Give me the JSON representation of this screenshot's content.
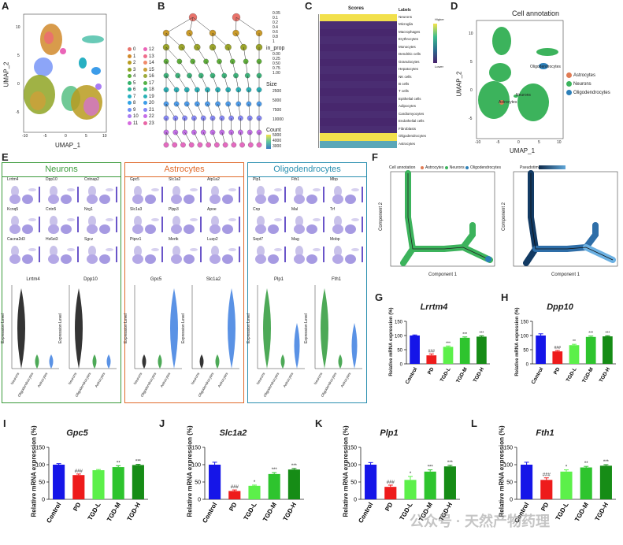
{
  "panels": {
    "A": {
      "letter": "A",
      "xlabel": "UMAP_1",
      "ylabel": "UMAP_2",
      "legend_col1": [
        "0",
        "1",
        "2",
        "3",
        "4",
        "5",
        "6",
        "7",
        "8",
        "9",
        "10",
        "11"
      ],
      "legend_col2": [
        "12",
        "13",
        "14",
        "15",
        "16",
        "17",
        "18",
        "19",
        "20",
        "21",
        "22",
        "23"
      ],
      "colors": [
        "#e9736b",
        "#d18a2b",
        "#b89b1f",
        "#8fa424",
        "#5cae3a",
        "#33b26a",
        "#2ab499",
        "#27b0c2",
        "#31a3e4",
        "#6f8ff6",
        "#a97cf3",
        "#d56be0",
        "#ea65b8",
        "#ef6f8d",
        "#f08a6b",
        "#c9a13a",
        "#9dab3c",
        "#55b247",
        "#34b585",
        "#2ab2b6",
        "#3c9ce9",
        "#8786f5",
        "#c56ee8",
        "#e866a6"
      ],
      "xticks": [
        "-10",
        "-5",
        "0",
        "5",
        "10"
      ],
      "yticks": [
        "10",
        "5",
        "0",
        "-5"
      ]
    },
    "B": {
      "letter": "B",
      "legend_title1": "",
      "legend1": [
        "0.05",
        "0.1",
        "0.2",
        "0.4",
        "0.6",
        "0.8",
        "1"
      ],
      "legend_title2": "in_prop",
      "legend2": [
        "0.00",
        "0.25",
        "0.50",
        "0.75",
        "1.00"
      ],
      "legend_title3": "Size",
      "legend3": [
        "2500",
        "5000",
        "7500",
        "10000"
      ],
      "legend_title4": "Count",
      "legend4": [
        "5000",
        "4000",
        "3000"
      ]
    },
    "C": {
      "letter": "C",
      "col_title": "Scores",
      "labels_title": "Labels",
      "labels": [
        "Neurons",
        "Microglia",
        "Macrophages",
        "Erythrocytes",
        "Monocytes",
        "Dendritic cells",
        "Granulocytes",
        "Hepatocytes",
        "NK cells",
        "B cells",
        "T cells",
        "Epithelial cells",
        "Adipocytes",
        "Cardiomyocytes",
        "Endothelial cells",
        "Fibroblasts",
        "Oligodendrocytes",
        "Astrocytes"
      ],
      "scale_high": "Higher",
      "scale_low": "Lower"
    },
    "D": {
      "letter": "D",
      "title": "Cell annotation",
      "xlabel": "UMAP_1",
      "ylabel": "UMAP_2",
      "legend": [
        {
          "name": "Astrocytes",
          "color": "#e07b54"
        },
        {
          "name": "Neurons",
          "color": "#3cb35c"
        },
        {
          "name": "Oligodendrocytes",
          "color": "#2c7fb8"
        }
      ],
      "annot": [
        "Oligodendrocytes",
        "Neurons",
        "Astrocytes"
      ],
      "xticks": [
        "-10",
        "-5",
        "0",
        "5",
        "10"
      ],
      "yticks": [
        "10",
        "5",
        "0",
        "-5"
      ]
    },
    "E": {
      "letter": "E",
      "groups": [
        {
          "title": "Neurons",
          "color": "#3a9a3a",
          "genes": [
            "Lrrtm4",
            "Dpp10",
            "Cntnap2",
            "Kcnq5",
            "Cntn5",
            "Nrg1",
            "Cacna2d3",
            "Hs6st3",
            "Sgcz"
          ],
          "violins": [
            "Lrrtm4",
            "Dpp10"
          ]
        },
        {
          "title": "Astrocytes",
          "color": "#e06a2b",
          "genes": [
            "Gpc5",
            "Slc1a2",
            "Atp1a2",
            "Slc1a3",
            "Plpp3",
            "Apoe",
            "Ptprz1",
            "Mertk",
            "Luzp2"
          ],
          "violins": [
            "Gpc5",
            "Slc1a2"
          ]
        },
        {
          "title": "Oligodendrocytes",
          "color": "#2a8fb0",
          "genes": [
            "Plp1",
            "Fth1",
            "Mbp",
            "Cnp",
            "Mal",
            "Trf",
            "Sept7",
            "Mag",
            "Mobp"
          ],
          "violins": [
            "Plp1",
            "Fth1"
          ]
        }
      ],
      "violin_ylabel": "Expression Level",
      "violin_x": [
        "Neurons",
        "Oligodendrocytes",
        "Astrocytes"
      ]
    },
    "F": {
      "letter": "F",
      "legend_title": "Cell annotation",
      "legend": [
        "Astrocytes",
        "Neurons",
        "Oligodendrocytes"
      ],
      "xlabel": "Component 1",
      "ylabel": "Component 2",
      "pseudotime": "Pseudotime"
    }
  },
  "colors": {
    "control": "#1515e8",
    "pd": "#ee1b1b",
    "tgdl": "#5cf04a",
    "tgdm": "#2ec42e",
    "tgdh": "#168c16",
    "star": "#222222"
  },
  "chart_data": [
    {
      "panel": "G",
      "type": "bar",
      "title": "Lrrtm4",
      "ylabel": "Relative mRNA expression (%)",
      "ylim": [
        0,
        150
      ],
      "yticks": [
        0,
        50,
        100,
        150
      ],
      "categories": [
        "Control",
        "PD",
        "TGD-L",
        "TGD-M",
        "TGD-H"
      ],
      "values": [
        100,
        30,
        60,
        92,
        96
      ],
      "errors": [
        2,
        5,
        3,
        3,
        3
      ],
      "annotations": [
        "",
        "###",
        "***",
        "***",
        "***"
      ]
    },
    {
      "panel": "H",
      "type": "bar",
      "title": "Dpp10",
      "ylabel": "Relative mRNA expression (%)",
      "ylim": [
        0,
        150
      ],
      "yticks": [
        0,
        50,
        100,
        150
      ],
      "categories": [
        "Control",
        "PD",
        "TGD-L",
        "TGD-M",
        "TGD-H"
      ],
      "values": [
        100,
        44,
        66,
        95,
        97
      ],
      "errors": [
        6,
        3,
        3,
        3,
        2
      ],
      "annotations": [
        "",
        "###",
        "**",
        "***",
        "***"
      ]
    },
    {
      "panel": "I",
      "type": "bar",
      "title": "Gpc5",
      "ylabel": "Relative mRNA expression (%)",
      "ylim": [
        0,
        150
      ],
      "yticks": [
        0,
        50,
        100,
        150
      ],
      "categories": [
        "Control",
        "PD",
        "TGD-L",
        "TGD-M",
        "TGD-H"
      ],
      "values": [
        100,
        70,
        84,
        93,
        99
      ],
      "errors": [
        3,
        3,
        2,
        4,
        2
      ],
      "annotations": [
        "",
        "###",
        "",
        "**",
        "***"
      ]
    },
    {
      "panel": "J",
      "type": "bar",
      "title": "Slc1a2",
      "ylabel": "Relative mRNA expression (%)",
      "ylim": [
        0,
        150
      ],
      "yticks": [
        0,
        50,
        100,
        150
      ],
      "categories": [
        "Control",
        "PD",
        "TGD-L",
        "TGD-M",
        "TGD-H"
      ],
      "values": [
        100,
        24,
        39,
        73,
        86
      ],
      "errors": [
        7,
        3,
        2,
        4,
        3
      ],
      "annotations": [
        "",
        "###",
        "*",
        "***",
        "***"
      ]
    },
    {
      "panel": "K",
      "type": "bar",
      "title": "Plp1",
      "ylabel": "Relative mRNA expression (%)",
      "ylim": [
        0,
        150
      ],
      "yticks": [
        0,
        50,
        100,
        150
      ],
      "categories": [
        "Control",
        "PD",
        "TGD-L",
        "TGD-M",
        "TGD-H"
      ],
      "values": [
        100,
        36,
        56,
        80,
        95
      ],
      "errors": [
        6,
        5,
        10,
        5,
        3
      ],
      "annotations": [
        "",
        "###",
        "*",
        "***",
        "***"
      ]
    },
    {
      "panel": "L",
      "type": "bar",
      "title": "Fth1",
      "ylabel": "Relative mRNA expression (%)",
      "ylim": [
        0,
        150
      ],
      "yticks": [
        0,
        50,
        100,
        150
      ],
      "categories": [
        "Control",
        "PD",
        "TGD-L",
        "TGD-M",
        "TGD-H"
      ],
      "values": [
        100,
        56,
        80,
        92,
        97
      ],
      "errors": [
        7,
        6,
        5,
        3,
        3
      ],
      "annotations": [
        "",
        "###",
        "*",
        "**",
        "***"
      ]
    }
  ],
  "watermark": "公众号 · 天然产物药理"
}
